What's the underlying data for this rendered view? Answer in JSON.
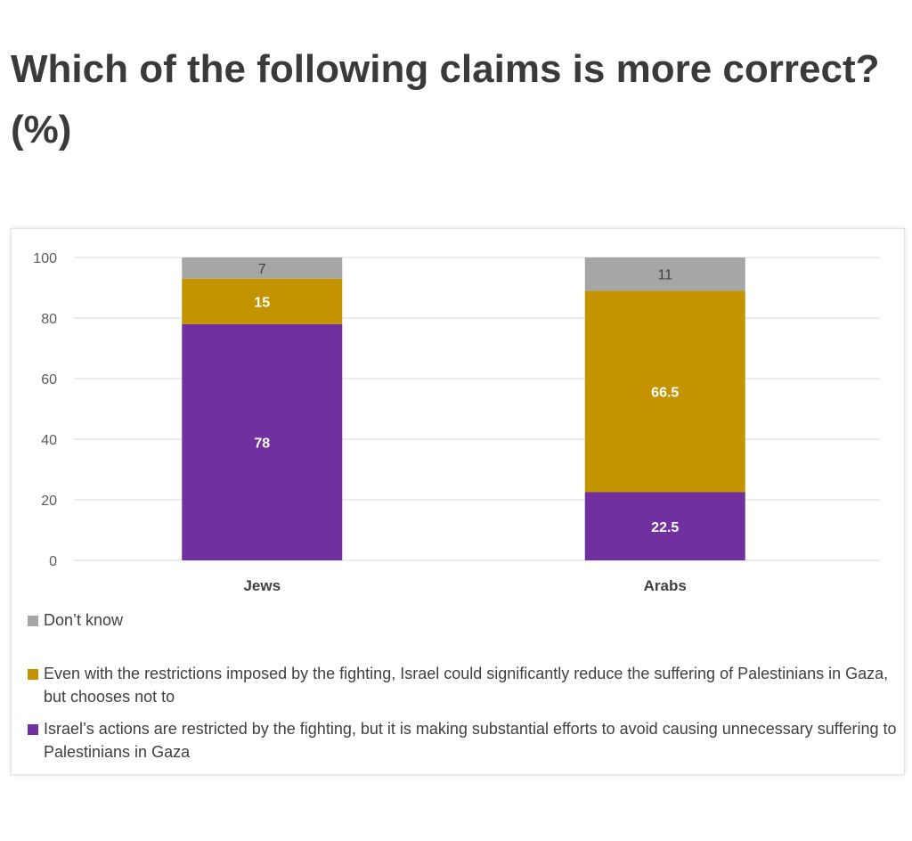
{
  "title": "Which of the following claims is more correct? (%)",
  "colors": {
    "dont_know": "#a6a6a6",
    "even_with": "#c49400",
    "israels_actions": "#7030a0",
    "gridline": "#d9d9d9",
    "axis_text": "#595959"
  },
  "chart_data": {
    "type": "bar",
    "stacked": true,
    "categories": [
      "Jews",
      "Arabs"
    ],
    "ylim": [
      0,
      100
    ],
    "yticks": [
      0,
      20,
      40,
      60,
      80,
      100
    ],
    "grid": true,
    "legend_position": "bottom",
    "series": [
      {
        "key": "israels_actions",
        "name": "Israel’s actions are restricted by the fighting, but it is making substantial efforts to avoid causing unnecessary suffering to Palestinians in Gaza",
        "values": [
          78,
          22.5
        ],
        "labels": [
          "78",
          "22.5"
        ],
        "color": "#7030a0"
      },
      {
        "key": "even_with",
        "name": "Even with the restrictions imposed by the fighting, Israel could significantly reduce the suffering of Palestinians in Gaza, but chooses not to",
        "values": [
          15,
          66.5
        ],
        "labels": [
          "15",
          "66.5"
        ],
        "color": "#c49400"
      },
      {
        "key": "dont_know",
        "name": "Don’t know",
        "values": [
          7,
          11
        ],
        "labels": [
          "7",
          "11"
        ],
        "color": "#a6a6a6"
      }
    ]
  }
}
